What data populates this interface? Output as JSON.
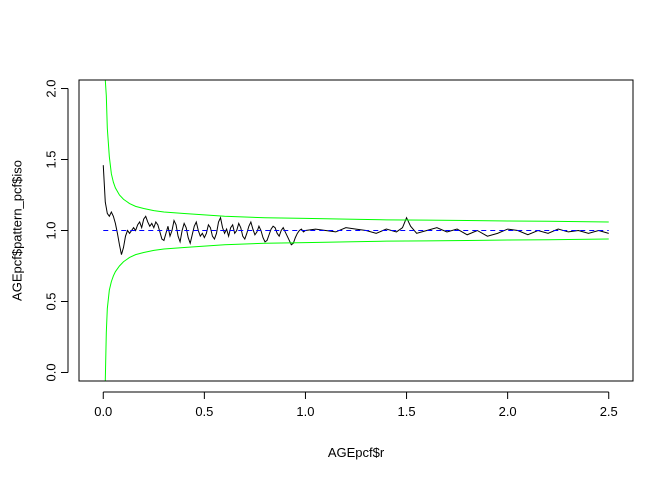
{
  "chart_data": {
    "type": "line",
    "title": "",
    "xlabel": "AGEpcf$r",
    "ylabel": "AGEpcf$pattern_pcf$iso",
    "xlim": [
      -0.12,
      2.62
    ],
    "ylim": [
      -0.06,
      2.06
    ],
    "x_ticks": [
      "0.0",
      "0.5",
      "1.0",
      "1.5",
      "2.0",
      "2.5"
    ],
    "y_ticks": [
      "0.0",
      "0.5",
      "1.0",
      "1.5",
      "2.0"
    ],
    "grid": false,
    "legend": "none",
    "series": [
      {
        "style": "solid",
        "color": "#000000",
        "x": [
          0.0,
          0.01,
          0.02,
          0.03,
          0.04,
          0.05,
          0.06,
          0.07,
          0.08,
          0.09,
          0.1,
          0.11,
          0.12,
          0.13,
          0.14,
          0.15,
          0.16,
          0.17,
          0.18,
          0.19,
          0.2,
          0.21,
          0.22,
          0.23,
          0.24,
          0.25,
          0.26,
          0.27,
          0.28,
          0.29,
          0.3,
          0.31,
          0.32,
          0.33,
          0.34,
          0.35,
          0.36,
          0.37,
          0.38,
          0.39,
          0.4,
          0.41,
          0.42,
          0.43,
          0.44,
          0.45,
          0.46,
          0.47,
          0.48,
          0.49,
          0.5,
          0.51,
          0.52,
          0.53,
          0.54,
          0.55,
          0.56,
          0.57,
          0.58,
          0.59,
          0.6,
          0.61,
          0.62,
          0.63,
          0.64,
          0.65,
          0.66,
          0.67,
          0.68,
          0.69,
          0.7,
          0.71,
          0.72,
          0.73,
          0.74,
          0.75,
          0.76,
          0.77,
          0.78,
          0.79,
          0.8,
          0.81,
          0.82,
          0.83,
          0.84,
          0.85,
          0.86,
          0.87,
          0.88,
          0.89,
          0.9,
          0.91,
          0.92,
          0.93,
          0.94,
          0.95,
          0.96,
          0.97,
          0.98,
          0.99,
          1.0,
          1.05,
          1.1,
          1.15,
          1.2,
          1.25,
          1.3,
          1.35,
          1.4,
          1.45,
          1.48,
          1.5,
          1.52,
          1.55,
          1.6,
          1.65,
          1.7,
          1.75,
          1.8,
          1.85,
          1.9,
          1.95,
          2.0,
          2.05,
          2.1,
          2.15,
          2.2,
          2.25,
          2.3,
          2.35,
          2.4,
          2.45,
          2.5
        ],
        "y": [
          1.46,
          1.2,
          1.12,
          1.1,
          1.13,
          1.1,
          1.05,
          0.98,
          0.9,
          0.83,
          0.88,
          0.96,
          1.0,
          0.98,
          1.0,
          1.02,
          1.0,
          1.04,
          1.06,
          1.02,
          1.08,
          1.1,
          1.06,
          1.03,
          1.05,
          1.02,
          1.06,
          1.04,
          0.99,
          0.94,
          0.93,
          0.98,
          1.03,
          0.96,
          1.0,
          1.07,
          1.04,
          0.96,
          0.92,
          1.0,
          1.05,
          1.02,
          0.95,
          0.91,
          0.97,
          1.03,
          1.06,
          1.0,
          0.96,
          0.98,
          0.95,
          0.98,
          1.04,
          1.02,
          0.96,
          0.94,
          0.98,
          1.06,
          1.09,
          1.02,
          0.98,
          1.01,
          0.96,
          1.02,
          1.04,
          0.98,
          1.0,
          1.05,
          1.02,
          0.96,
          0.94,
          0.98,
          1.03,
          1.06,
          1.01,
          0.97,
          0.99,
          1.03,
          1.0,
          0.95,
          0.92,
          0.93,
          0.97,
          1.01,
          1.03,
          1.02,
          0.98,
          0.96,
          1.0,
          1.02,
          0.99,
          0.96,
          0.93,
          0.9,
          0.91,
          0.95,
          0.98,
          1.0,
          1.01,
          0.99,
          1.0,
          1.01,
          1.0,
          0.99,
          1.02,
          1.01,
          1.0,
          0.98,
          1.01,
          0.99,
          1.02,
          1.09,
          1.03,
          0.98,
          1.0,
          1.02,
          0.99,
          1.01,
          0.97,
          1.0,
          0.96,
          0.98,
          1.01,
          1.0,
          0.97,
          1.0,
          0.98,
          1.01,
          0.99,
          1.0,
          0.98,
          1.0,
          0.98
        ]
      },
      {
        "style": "dashed",
        "color": "#0000ff",
        "x": [
          0.0,
          2.5
        ],
        "y": [
          1.0,
          1.0
        ]
      },
      {
        "style": "solid",
        "color": "#00ff00",
        "x": [
          0.01,
          0.015,
          0.02,
          0.03,
          0.04,
          0.05,
          0.06,
          0.08,
          0.1,
          0.13,
          0.16,
          0.2,
          0.25,
          0.3,
          0.4,
          0.5,
          0.6,
          0.7,
          0.8,
          1.0,
          1.2,
          1.4,
          1.6,
          1.8,
          2.0,
          2.2,
          2.4,
          2.5
        ],
        "y": [
          2.06,
          1.95,
          1.72,
          1.52,
          1.4,
          1.34,
          1.3,
          1.25,
          1.22,
          1.19,
          1.17,
          1.155,
          1.14,
          1.13,
          1.12,
          1.11,
          1.1,
          1.095,
          1.09,
          1.085,
          1.08,
          1.075,
          1.073,
          1.07,
          1.067,
          1.065,
          1.062,
          1.06
        ]
      },
      {
        "style": "solid",
        "color": "#00ff00",
        "x": [
          0.01,
          0.015,
          0.02,
          0.03,
          0.04,
          0.05,
          0.06,
          0.08,
          0.1,
          0.13,
          0.16,
          0.2,
          0.25,
          0.3,
          0.4,
          0.5,
          0.6,
          0.7,
          0.8,
          1.0,
          1.2,
          1.4,
          1.6,
          1.8,
          2.0,
          2.2,
          2.4,
          2.5
        ],
        "y": [
          -0.06,
          0.28,
          0.45,
          0.58,
          0.64,
          0.68,
          0.71,
          0.75,
          0.78,
          0.81,
          0.83,
          0.845,
          0.86,
          0.87,
          0.88,
          0.89,
          0.9,
          0.905,
          0.91,
          0.915,
          0.92,
          0.925,
          0.927,
          0.93,
          0.933,
          0.935,
          0.938,
          0.94
        ]
      }
    ]
  }
}
